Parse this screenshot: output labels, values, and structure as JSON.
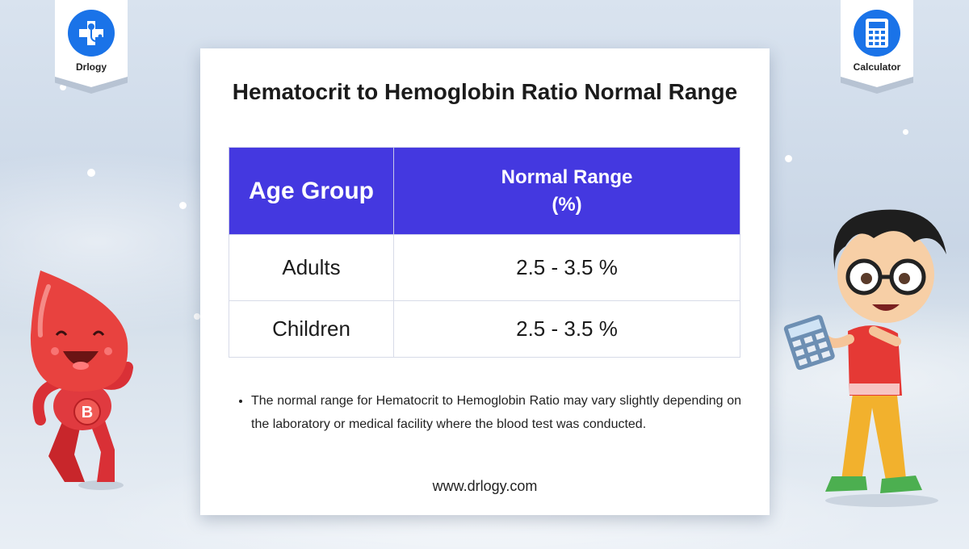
{
  "brand": {
    "left_badge_label": "Drlogy",
    "left_badge_icon": "medical-cross-stethoscope-icon",
    "right_badge_label": "Calculator",
    "right_badge_icon": "calculator-icon",
    "accent_color": "#1a73e8"
  },
  "card": {
    "title": "Hematocrit to Hemoglobin Ratio Normal Range",
    "table": {
      "header_color": "#4438e0",
      "headers": [
        "Age Group",
        "Normal Range",
        "(%)"
      ],
      "rows": [
        {
          "group": "Adults",
          "range": "2.5 - 3.5 %"
        },
        {
          "group": "Children",
          "range": "2.5 - 3.5 %"
        }
      ]
    },
    "note": "The normal range for Hematocrit to Hemoglobin Ratio may vary slightly depending on the laboratory or medical facility where the blood test was conducted.",
    "website": "www.drlogy.com"
  },
  "illustrations": {
    "left": "blood-drop-mascot",
    "mascot_letter": "B",
    "right": "boy-with-calculator"
  }
}
